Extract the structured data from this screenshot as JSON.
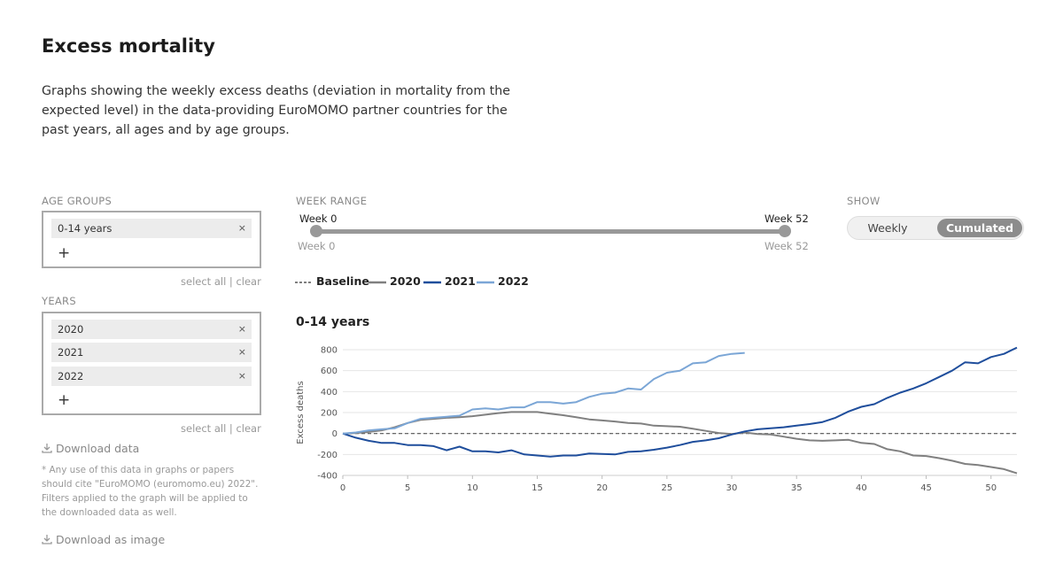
{
  "page": {
    "title": "Excess mortality",
    "intro": "Graphs showing the weekly excess deaths (deviation in mortality from the expected level) in the data-providing EuroMOMO partner countries for the past years, all ages and by age groups."
  },
  "age_groups": {
    "label": "AGE GROUPS",
    "selected": [
      "0-14 years"
    ],
    "remove_glyph": "×",
    "add_glyph": "+",
    "select_all": "select all",
    "separator": "|",
    "clear": "clear"
  },
  "years": {
    "label": "YEARS",
    "selected": [
      "2020",
      "2021",
      "2022"
    ],
    "remove_glyph": "×",
    "add_glyph": "+",
    "select_all": "select all",
    "separator": "|",
    "clear": "clear"
  },
  "downloads": {
    "data_label": "Download data",
    "note": "* Any use of this data in graphs or papers should cite \"EuroMOMO (euromomo.eu) 2022\". Filters applied to the graph will be applied to the downloaded data as well.",
    "image_label": "Download as image"
  },
  "week_range": {
    "label": "WEEK RANGE",
    "min_label": "Week 0",
    "max_label": "Week 52",
    "min_bottom_label": "Week 0",
    "max_bottom_label": "Week 52",
    "min": 0,
    "max": 52
  },
  "show": {
    "label": "SHOW",
    "options": [
      "Weekly",
      "Cumulated"
    ],
    "selected": "Cumulated"
  },
  "legend": [
    {
      "name": "Baseline",
      "color": "#555555",
      "style": "dashed"
    },
    {
      "name": "2020",
      "color": "#808080",
      "style": "solid"
    },
    {
      "name": "2021",
      "color": "#1f4e9c",
      "style": "solid"
    },
    {
      "name": "2022",
      "color": "#7ba6d6",
      "style": "solid"
    }
  ],
  "chart_data": {
    "type": "line",
    "title": "0-14 years",
    "xlabel": "",
    "ylabel": "Excess deaths",
    "xlim": [
      0,
      52
    ],
    "ylim": [
      -400,
      800
    ],
    "xticks": [
      0,
      5,
      10,
      15,
      20,
      25,
      30,
      35,
      40,
      45,
      50
    ],
    "yticks": [
      -400,
      -200,
      0,
      200,
      400,
      600,
      800
    ],
    "grid": true,
    "baseline": 0,
    "series": [
      {
        "name": "2020",
        "color": "#808080",
        "x": [
          0,
          1,
          2,
          3,
          4,
          5,
          6,
          7,
          8,
          9,
          10,
          11,
          12,
          13,
          14,
          15,
          16,
          17,
          18,
          19,
          20,
          21,
          22,
          23,
          24,
          25,
          26,
          27,
          28,
          29,
          30,
          31,
          32,
          33,
          34,
          35,
          36,
          37,
          38,
          39,
          40,
          41,
          42,
          43,
          44,
          45,
          46,
          47,
          48,
          49,
          50,
          51,
          52
        ],
        "values": [
          0,
          5,
          15,
          30,
          60,
          100,
          130,
          140,
          150,
          155,
          165,
          180,
          195,
          205,
          205,
          205,
          190,
          175,
          155,
          135,
          125,
          115,
          100,
          95,
          75,
          70,
          65,
          45,
          25,
          5,
          -5,
          10,
          -5,
          -10,
          -30,
          -50,
          -65,
          -70,
          -65,
          -60,
          -90,
          -100,
          -150,
          -170,
          -210,
          -215,
          -235,
          -260,
          -290,
          -300,
          -320,
          -340,
          -380
        ]
      },
      {
        "name": "2021",
        "color": "#1f4e9c",
        "x": [
          0,
          1,
          2,
          3,
          4,
          5,
          6,
          7,
          8,
          9,
          10,
          11,
          12,
          13,
          14,
          15,
          16,
          17,
          18,
          19,
          20,
          21,
          22,
          23,
          24,
          25,
          26,
          27,
          28,
          29,
          30,
          31,
          32,
          33,
          34,
          35,
          36,
          37,
          38,
          39,
          40,
          41,
          42,
          43,
          44,
          45,
          46,
          47,
          48,
          49,
          50,
          51,
          52
        ],
        "values": [
          0,
          -40,
          -70,
          -90,
          -90,
          -110,
          -110,
          -120,
          -160,
          -125,
          -170,
          -170,
          -180,
          -160,
          -200,
          -210,
          -220,
          -210,
          -210,
          -190,
          -195,
          -200,
          -175,
          -170,
          -155,
          -135,
          -110,
          -80,
          -65,
          -45,
          -10,
          20,
          40,
          50,
          60,
          75,
          90,
          110,
          150,
          210,
          255,
          280,
          340,
          390,
          430,
          480,
          540,
          600,
          680,
          670,
          730,
          760,
          820
        ]
      },
      {
        "name": "2022",
        "color": "#7ba6d6",
        "x": [
          0,
          1,
          2,
          3,
          4,
          5,
          6,
          7,
          8,
          9,
          10,
          11,
          12,
          13,
          14,
          15,
          16,
          17,
          18,
          19,
          20,
          21,
          22,
          23,
          24,
          25,
          26,
          27,
          28,
          29,
          30,
          31
        ],
        "values": [
          0,
          10,
          30,
          40,
          50,
          100,
          140,
          150,
          160,
          170,
          230,
          240,
          230,
          250,
          250,
          300,
          300,
          285,
          300,
          350,
          380,
          390,
          430,
          420,
          520,
          580,
          600,
          670,
          680,
          740,
          760,
          770
        ]
      }
    ]
  }
}
